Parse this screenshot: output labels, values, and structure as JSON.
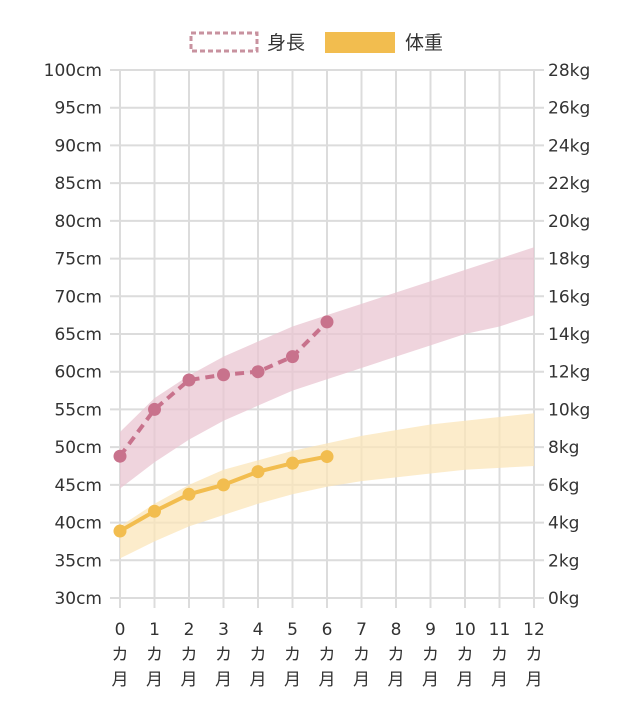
{
  "chart_data": {
    "type": "line",
    "x": [
      0,
      1,
      2,
      3,
      4,
      5,
      6,
      7,
      8,
      9,
      10,
      11,
      12
    ],
    "x_tick_labels": [
      "0",
      "1",
      "2",
      "3",
      "4",
      "5",
      "6",
      "7",
      "8",
      "9",
      "10",
      "11",
      "12"
    ],
    "x_unit_chars": [
      "カ",
      "月"
    ],
    "y_left": {
      "min": 30,
      "max": 100,
      "step": 5,
      "unit": "cm"
    },
    "y_right": {
      "min": 0,
      "max": 28,
      "step": 2,
      "unit": "kg"
    },
    "grid": true,
    "legend_placement": "top",
    "series": [
      {
        "name": "身長",
        "axis": "left",
        "style": "dashed",
        "color": "#c8728c",
        "x": [
          0,
          1,
          2,
          3,
          4,
          5,
          6
        ],
        "values": [
          48.8,
          55,
          58.9,
          59.6,
          60,
          62,
          66.6
        ]
      },
      {
        "name": "体重",
        "axis": "right",
        "style": "solid",
        "color": "#f2bd4f",
        "x": [
          0,
          1,
          2,
          3,
          4,
          5,
          6
        ],
        "values": [
          3.55,
          4.6,
          5.5,
          6.0,
          6.7,
          7.15,
          7.5
        ]
      }
    ],
    "bands": [
      {
        "axis": "left",
        "color": "#e9c6d2",
        "lower": [
          44.5,
          48,
          51,
          53.5,
          55.5,
          57.5,
          59,
          60.5,
          62,
          63.5,
          65,
          66,
          67.5
        ],
        "upper": [
          52,
          56.5,
          59.5,
          62,
          64,
          66,
          67.5,
          69,
          70.5,
          72,
          73.5,
          75,
          76.5
        ]
      },
      {
        "axis": "right",
        "color": "#fbe6b9",
        "lower": [
          2.1,
          3,
          3.8,
          4.4,
          5,
          5.5,
          5.9,
          6.2,
          6.4,
          6.6,
          6.8,
          6.9,
          7
        ],
        "upper": [
          3.8,
          5,
          6,
          6.8,
          7.3,
          7.8,
          8.2,
          8.6,
          8.9,
          9.2,
          9.4,
          9.6,
          9.8
        ]
      }
    ]
  }
}
